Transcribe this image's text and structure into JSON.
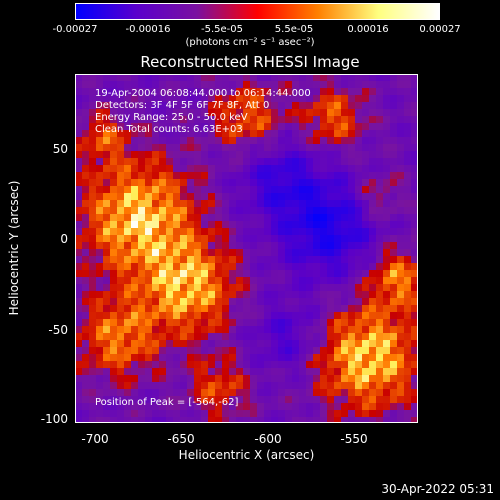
{
  "colorbar": {
    "ticks": [
      "-0.00027",
      "-0.00016",
      "-5.5e-05",
      "5.5e-05",
      "0.00016",
      "0.00027"
    ],
    "units": "(photons cm⁻² s⁻¹ asec⁻²)",
    "colors": [
      "#0000ff",
      "#5a00cc",
      "#7a10a0",
      "#ff0000",
      "#ff8000",
      "#ffff80",
      "#ffffff"
    ]
  },
  "title": "Reconstructed RHESSI Image",
  "info": {
    "line1": "19-Apr-2004 06:08:44.000 to 06:14:44.000",
    "line2": "Detectors: 3F 4F 5F 6F 7F 8F, Att 0",
    "line3": "Energy Range: 25.0 - 50.0 keV",
    "line4": "Clean    Total counts: 6.63E+03",
    "peak": "Position of Peak = [-564,-62]"
  },
  "axes": {
    "xlabel": "Heliocentric X (arcsec)",
    "ylabel": "Heliocentric Y (arcsec)",
    "xticks": [
      "-700",
      "-650",
      "-600",
      "-550"
    ],
    "yticks": [
      "50",
      "0",
      "-50",
      "-100"
    ]
  },
  "timestamp": "30-Apr-2022 05:31"
}
